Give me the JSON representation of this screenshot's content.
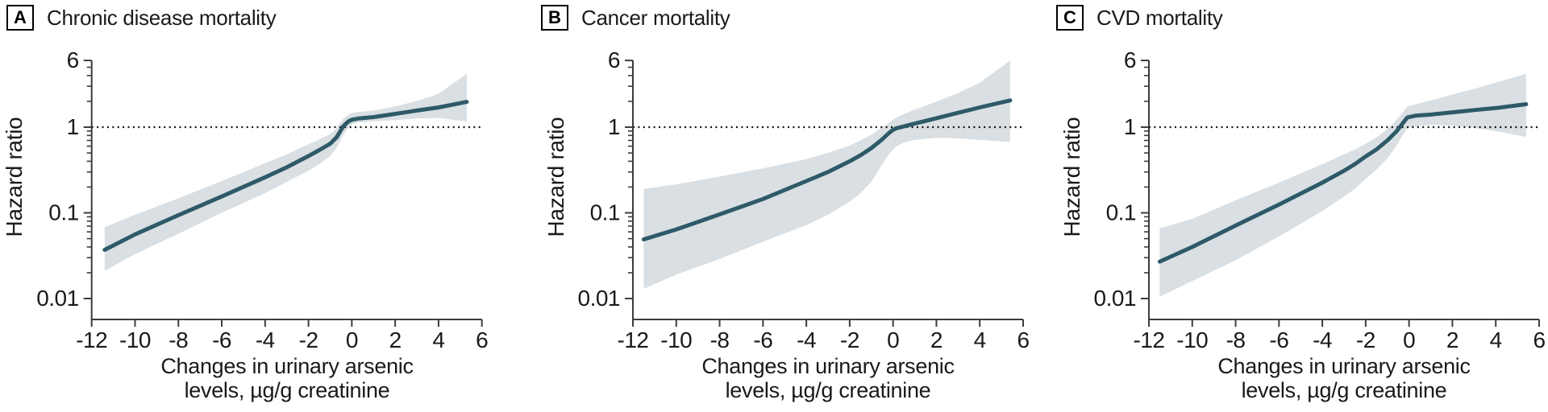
{
  "figure": {
    "y_axis_label": "Hazard ratio",
    "x_axis_label_line1": "Changes in urinary arsenic",
    "x_axis_label_line2": "levels, µg/g creatinine",
    "reference_line_value": 1,
    "colors": {
      "curve": "#2e5a68",
      "ci_band": "#d9dfe3",
      "reference_dotted": "#111111",
      "axis": "#3d3d3d",
      "text": "#1a1a1a"
    }
  },
  "chart_data": [
    {
      "type": "line",
      "panel_label": "A",
      "title": "Chronic disease mortality",
      "xlabel": "Changes in urinary arsenic levels, µg/g creatinine",
      "ylabel": "Hazard ratio",
      "y_scale": "log",
      "xlim": [
        -12,
        6
      ],
      "ylim": [
        0.0056,
        6
      ],
      "x_ticks": [
        -12,
        -10,
        -8,
        -6,
        -4,
        -2,
        0,
        2,
        4,
        6
      ],
      "y_ticks": [
        6,
        1,
        0.1,
        0.01
      ],
      "reference_line_y": 1,
      "legend": "none",
      "grid": false,
      "x": [
        -11.4,
        -10,
        -8,
        -6,
        -4,
        -3,
        -2,
        -1.5,
        -1,
        -0.7,
        -0.4,
        -0.15,
        0,
        0.3,
        1,
        2,
        3,
        4,
        5.3
      ],
      "hazard_ratio": [
        0.037,
        0.056,
        0.094,
        0.155,
        0.26,
        0.34,
        0.46,
        0.54,
        0.64,
        0.76,
        1.02,
        1.17,
        1.22,
        1.26,
        1.31,
        1.43,
        1.56,
        1.7,
        1.97
      ],
      "ci_lower": [
        0.021,
        0.033,
        0.057,
        0.1,
        0.17,
        0.23,
        0.31,
        0.37,
        0.46,
        0.57,
        0.8,
        1.0,
        1.08,
        1.13,
        1.17,
        1.21,
        1.26,
        1.28,
        1.16
      ],
      "ci_upper": [
        0.068,
        0.095,
        0.148,
        0.235,
        0.38,
        0.48,
        0.63,
        0.72,
        0.83,
        0.97,
        1.25,
        1.4,
        1.46,
        1.5,
        1.56,
        1.74,
        2.02,
        2.45,
        4.2
      ]
    },
    {
      "type": "line",
      "panel_label": "B",
      "title": "Cancer mortality",
      "xlabel": "Changes in urinary arsenic levels, µg/g creatinine",
      "ylabel": "Hazard ratio",
      "y_scale": "log",
      "xlim": [
        -12,
        6
      ],
      "ylim": [
        0.0056,
        6
      ],
      "x_ticks": [
        -12,
        -10,
        -8,
        -6,
        -4,
        -2,
        0,
        2,
        4,
        6
      ],
      "y_ticks": [
        6,
        1,
        0.1,
        0.01
      ],
      "reference_line_y": 1,
      "legend": "none",
      "grid": false,
      "x": [
        -11.5,
        -10,
        -8,
        -6,
        -4,
        -3,
        -2,
        -1.5,
        -1,
        -0.5,
        -0.2,
        0,
        0.15,
        0.5,
        1,
        2,
        3,
        4,
        5.4
      ],
      "hazard_ratio": [
        0.049,
        0.064,
        0.096,
        0.145,
        0.235,
        0.3,
        0.4,
        0.47,
        0.57,
        0.72,
        0.85,
        0.93,
        0.97,
        1.02,
        1.1,
        1.27,
        1.47,
        1.7,
        2.05
      ],
      "ci_lower": [
        0.013,
        0.019,
        0.029,
        0.046,
        0.072,
        0.095,
        0.135,
        0.17,
        0.23,
        0.37,
        0.48,
        0.55,
        0.6,
        0.66,
        0.71,
        0.75,
        0.74,
        0.71,
        0.67
      ],
      "ci_upper": [
        0.19,
        0.215,
        0.265,
        0.33,
        0.425,
        0.5,
        0.61,
        0.7,
        0.82,
        1.0,
        1.12,
        1.22,
        1.3,
        1.42,
        1.6,
        1.98,
        2.5,
        3.3,
        6.0
      ]
    },
    {
      "type": "line",
      "panel_label": "C",
      "title": "CVD mortality",
      "xlabel": "Changes in urinary arsenic levels, µg/g creatinine",
      "ylabel": "Hazard ratio",
      "y_scale": "log",
      "xlim": [
        -12,
        6
      ],
      "ylim": [
        0.0056,
        6
      ],
      "x_ticks": [
        -12,
        -10,
        -8,
        -6,
        -4,
        -2,
        0,
        2,
        4,
        6
      ],
      "y_ticks": [
        6,
        1,
        0.1,
        0.01
      ],
      "reference_line_y": 1,
      "legend": "none",
      "grid": false,
      "x": [
        -11.5,
        -10,
        -8,
        -6,
        -4,
        -3,
        -2.5,
        -2,
        -1.5,
        -1,
        -0.6,
        -0.3,
        -0.08,
        0.3,
        1,
        2,
        3,
        4,
        5.4
      ],
      "hazard_ratio": [
        0.027,
        0.04,
        0.071,
        0.125,
        0.225,
        0.31,
        0.37,
        0.455,
        0.55,
        0.7,
        0.88,
        1.1,
        1.3,
        1.36,
        1.4,
        1.49,
        1.58,
        1.67,
        1.85
      ],
      "ci_lower": [
        0.0105,
        0.016,
        0.028,
        0.053,
        0.105,
        0.155,
        0.19,
        0.25,
        0.32,
        0.43,
        0.6,
        0.8,
        0.96,
        1.02,
        1.06,
        1.04,
        0.98,
        0.9,
        0.77
      ],
      "ci_upper": [
        0.066,
        0.085,
        0.14,
        0.225,
        0.37,
        0.48,
        0.55,
        0.64,
        0.76,
        0.95,
        1.2,
        1.48,
        1.73,
        1.85,
        2.05,
        2.4,
        2.8,
        3.3,
        4.2
      ]
    }
  ]
}
